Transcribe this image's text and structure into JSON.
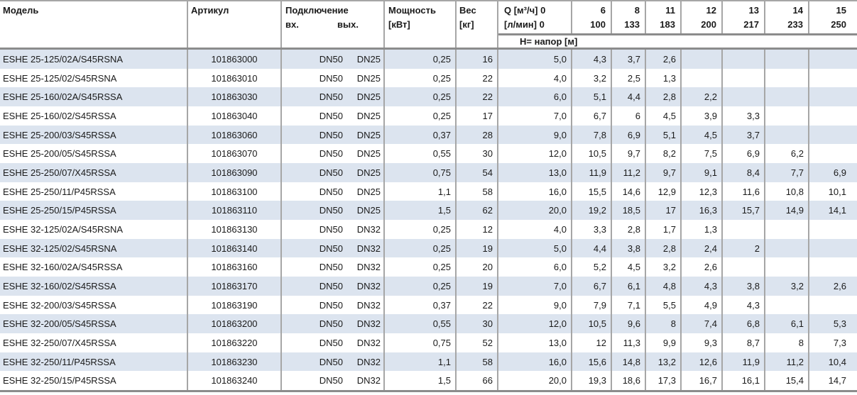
{
  "header": {
    "model": "Модель",
    "article": "Артикул",
    "connection": "Подключение",
    "connection_in": "вх.",
    "connection_out": "вых.",
    "power": "Мощность",
    "power_unit": "[кВт]",
    "weight": "Вес",
    "weight_unit": "[кг]",
    "q_line1": "Q [м³/ч] 0",
    "q_line2": "[л/мин] 0",
    "head_row_label": "Н= напор [м]",
    "flow_columns": [
      {
        "m3h": "6",
        "lmin": "100"
      },
      {
        "m3h": "8",
        "lmin": "133"
      },
      {
        "m3h": "11",
        "lmin": "183"
      },
      {
        "m3h": "12",
        "lmin": "200"
      },
      {
        "m3h": "13",
        "lmin": "217"
      },
      {
        "m3h": "14",
        "lmin": "233"
      },
      {
        "m3h": "15",
        "lmin": "250"
      }
    ]
  },
  "rows": [
    {
      "model": "ESHE 25-125/02A/S45RSNA",
      "article": "101863000",
      "conn_in": "DN50",
      "conn_out": "DN25",
      "power": "0,25",
      "weight": "16",
      "heads": [
        "5,0",
        "4,3",
        "3,7",
        "2,6",
        "",
        "",
        "",
        ""
      ]
    },
    {
      "model": "ESHE 25-125/02/S45RSNA",
      "article": "101863010",
      "conn_in": "DN50",
      "conn_out": "DN25",
      "power": "0,25",
      "weight": "22",
      "heads": [
        "4,0",
        "3,2",
        "2,5",
        "1,3",
        "",
        "",
        "",
        ""
      ]
    },
    {
      "model": "ESHE 25-160/02A/S45RSSA",
      "article": "101863030",
      "conn_in": "DN50",
      "conn_out": "DN25",
      "power": "0,25",
      "weight": "22",
      "heads": [
        "6,0",
        "5,1",
        "4,4",
        "2,8",
        "2,2",
        "",
        "",
        ""
      ]
    },
    {
      "model": "ESHE 25-160/02/S45RSSA",
      "article": "101863040",
      "conn_in": "DN50",
      "conn_out": "DN25",
      "power": "0,25",
      "weight": "17",
      "heads": [
        "7,0",
        "6,7",
        "6",
        "4,5",
        "3,9",
        "3,3",
        "",
        ""
      ]
    },
    {
      "model": "ESHE 25-200/03/S45RSSA",
      "article": "101863060",
      "conn_in": "DN50",
      "conn_out": "DN25",
      "power": "0,37",
      "weight": "28",
      "heads": [
        "9,0",
        "7,8",
        "6,9",
        "5,1",
        "4,5",
        "3,7",
        "",
        ""
      ]
    },
    {
      "model": "ESHE 25-200/05/S45RSSA",
      "article": "101863070",
      "conn_in": "DN50",
      "conn_out": "DN25",
      "power": "0,55",
      "weight": "30",
      "heads": [
        "12,0",
        "10,5",
        "9,7",
        "8,2",
        "7,5",
        "6,9",
        "6,2",
        ""
      ]
    },
    {
      "model": "ESHE 25-250/07/X45RSSA",
      "article": "101863090",
      "conn_in": "DN50",
      "conn_out": "DN25",
      "power": "0,75",
      "weight": "54",
      "heads": [
        "13,0",
        "11,9",
        "11,2",
        "9,7",
        "9,1",
        "8,4",
        "7,7",
        "6,9"
      ]
    },
    {
      "model": "ESHE 25-250/11/P45RSSA",
      "article": "101863100",
      "conn_in": "DN50",
      "conn_out": "DN25",
      "power": "1,1",
      "weight": "58",
      "heads": [
        "16,0",
        "15,5",
        "14,6",
        "12,9",
        "12,3",
        "11,6",
        "10,8",
        "10,1"
      ]
    },
    {
      "model": "ESHE 25-250/15/P45RSSA",
      "article": "101863110",
      "conn_in": "DN50",
      "conn_out": "DN25",
      "power": "1,5",
      "weight": "62",
      "heads": [
        "20,0",
        "19,2",
        "18,5",
        "17",
        "16,3",
        "15,7",
        "14,9",
        "14,1"
      ]
    },
    {
      "model": "ESHE 32-125/02A/S45RSNA",
      "article": "101863130",
      "conn_in": "DN50",
      "conn_out": "DN32",
      "power": "0,25",
      "weight": "12",
      "heads": [
        "4,0",
        "3,3",
        "2,8",
        "1,7",
        "1,3",
        "",
        "",
        ""
      ]
    },
    {
      "model": "ESHE 32-125/02/S45RSNA",
      "article": "101863140",
      "conn_in": "DN50",
      "conn_out": "DN32",
      "power": "0,25",
      "weight": "19",
      "heads": [
        "5,0",
        "4,4",
        "3,8",
        "2,8",
        "2,4",
        "2",
        "",
        ""
      ]
    },
    {
      "model": "ESHE 32-160/02A/S45RSSA",
      "article": "101863160",
      "conn_in": "DN50",
      "conn_out": "DN32",
      "power": "0,25",
      "weight": "20",
      "heads": [
        "6,0",
        "5,2",
        "4,5",
        "3,2",
        "2,6",
        "",
        "",
        ""
      ]
    },
    {
      "model": "ESHE 32-160/02/S45RSSA",
      "article": "101863170",
      "conn_in": "DN50",
      "conn_out": "DN32",
      "power": "0,25",
      "weight": "19",
      "heads": [
        "7,0",
        "6,7",
        "6,1",
        "4,8",
        "4,3",
        "3,8",
        "3,2",
        "2,6"
      ]
    },
    {
      "model": "ESHE 32-200/03/S45RSSA",
      "article": "101863190",
      "conn_in": "DN50",
      "conn_out": "DN32",
      "power": "0,37",
      "weight": "22",
      "heads": [
        "9,0",
        "7,9",
        "7,1",
        "5,5",
        "4,9",
        "4,3",
        "",
        ""
      ]
    },
    {
      "model": "ESHE 32-200/05/S45RSSA",
      "article": "101863200",
      "conn_in": "DN50",
      "conn_out": "DN32",
      "power": "0,55",
      "weight": "30",
      "heads": [
        "12,0",
        "10,5",
        "9,6",
        "8",
        "7,4",
        "6,8",
        "6,1",
        "5,3"
      ]
    },
    {
      "model": "ESHE 32-250/07/X45RSSA",
      "article": "101863220",
      "conn_in": "DN50",
      "conn_out": "DN32",
      "power": "0,75",
      "weight": "52",
      "heads": [
        "13,0",
        "12",
        "11,3",
        "9,9",
        "9,3",
        "8,7",
        "8",
        "7,3"
      ]
    },
    {
      "model": "ESHE 32-250/11/P45RSSA",
      "article": "101863230",
      "conn_in": "DN50",
      "conn_out": "DN32",
      "power": "1,1",
      "weight": "58",
      "heads": [
        "16,0",
        "15,6",
        "14,8",
        "13,2",
        "12,6",
        "11,9",
        "11,2",
        "10,4"
      ]
    },
    {
      "model": "ESHE 32-250/15/P45RSSA",
      "article": "101863240",
      "conn_in": "DN50",
      "conn_out": "DN32",
      "power": "1,5",
      "weight": "66",
      "heads": [
        "20,0",
        "19,3",
        "18,6",
        "17,3",
        "16,7",
        "16,1",
        "15,4",
        "14,7"
      ]
    }
  ],
  "colors": {
    "row_alt": "#dce4ef",
    "grid_line": "#a6a6a6",
    "section_line": "#8c8c8c",
    "text": "#1a1a1a"
  }
}
